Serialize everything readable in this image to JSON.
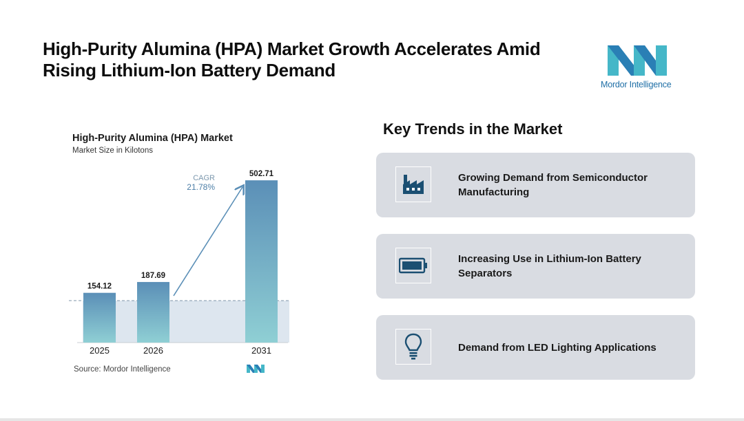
{
  "header": {
    "title": "High-Purity Alumina (HPA) Market Growth Accelerates Amid Rising Lithium-Ion Battery Demand",
    "logo_text": "Mordor Intelligence"
  },
  "chart_data": {
    "type": "bar",
    "title": "High-Purity Alumina (HPA) Market",
    "subtitle": "Market Size in Kilotons",
    "categories": [
      "2025",
      "2026",
      "2031"
    ],
    "values": [
      154.12,
      187.69,
      502.71
    ],
    "value_labels": [
      "154.12",
      "187.69",
      "502.71"
    ],
    "cagr_label": "CAGR",
    "cagr_value": "21.78%",
    "ylim": [
      0,
      520
    ],
    "source": "Source:  Mordor Intelligence"
  },
  "trends": {
    "heading": "Key Trends in the Market",
    "items": [
      {
        "label": "Growing Demand from Semiconductor Manufacturing",
        "icon": "factory-icon"
      },
      {
        "label": "Increasing Use in Lithium-Ion Battery Separators",
        "icon": "battery-icon"
      },
      {
        "label": "Demand from LED Lighting Applications",
        "icon": "lightbulb-icon"
      }
    ]
  },
  "colors": {
    "accent_teal": "#45b7c8",
    "accent_blue": "#1f6fa6",
    "bar_top": "#5b8fb7",
    "bar_bottom": "#8fcfd4",
    "card_bg": "#d9dce2",
    "icon_navy": "#1b4f72"
  }
}
